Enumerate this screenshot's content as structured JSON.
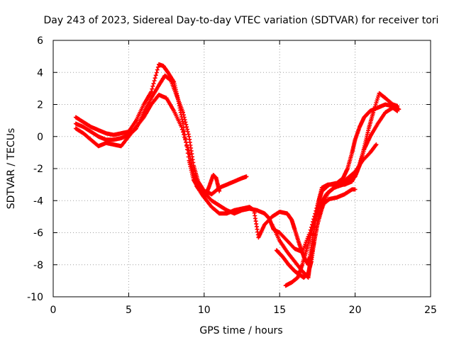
{
  "chart_data": {
    "type": "scatter",
    "title": "Day 243 of 2023, Sidereal Day-to-day VTEC variation (SDTVAR) for receiver tori",
    "xlabel": "GPS time / hours",
    "ylabel": "SDTVAR / TECUs",
    "xlim": [
      0,
      25
    ],
    "ylim": [
      -10,
      6
    ],
    "xticks": [
      "0",
      "5",
      "10",
      "15",
      "20",
      "25"
    ],
    "yticks": [
      "-10",
      "-8",
      "-6",
      "-4",
      "-2",
      "0",
      "2",
      "4",
      "6"
    ],
    "grid": true,
    "marker": "+",
    "color": "#ff0000",
    "series": [
      {
        "points": [
          [
            1.5,
            1.2
          ],
          [
            2.0,
            0.9
          ],
          [
            2.5,
            0.6
          ],
          [
            3.0,
            0.4
          ],
          [
            3.5,
            0.2
          ],
          [
            4.0,
            0.1
          ],
          [
            4.5,
            0.2
          ],
          [
            5.0,
            0.3
          ],
          [
            5.5,
            1.0
          ],
          [
            6.0,
            2.0
          ],
          [
            6.5,
            2.8
          ],
          [
            7.0,
            4.5
          ],
          [
            7.3,
            4.4
          ],
          [
            7.6,
            4.0
          ],
          [
            8.0,
            3.4
          ],
          [
            8.3,
            2.2
          ],
          [
            8.6,
            0.8
          ],
          [
            9.0,
            -1.5
          ],
          [
            9.3,
            -2.7
          ],
          [
            9.6,
            -3.2
          ],
          [
            10.0,
            -3.8
          ],
          [
            10.3,
            -3.2
          ],
          [
            10.6,
            -2.4
          ],
          [
            10.8,
            -2.6
          ],
          [
            11.0,
            -3.4
          ]
        ]
      },
      {
        "points": [
          [
            1.5,
            0.8
          ],
          [
            2.0,
            0.6
          ],
          [
            2.5,
            0.3
          ],
          [
            3.0,
            0.0
          ],
          [
            3.5,
            -0.2
          ],
          [
            4.0,
            -0.2
          ],
          [
            4.5,
            -0.1
          ],
          [
            5.0,
            0.1
          ],
          [
            5.5,
            0.5
          ],
          [
            6.0,
            1.5
          ],
          [
            6.5,
            2.4
          ],
          [
            7.0,
            3.2
          ],
          [
            7.4,
            3.8
          ],
          [
            7.8,
            3.5
          ],
          [
            8.2,
            2.5
          ],
          [
            8.6,
            1.5
          ],
          [
            9.0,
            0.0
          ],
          [
            9.3,
            -1.8
          ],
          [
            9.6,
            -2.8
          ],
          [
            10.0,
            -3.4
          ],
          [
            10.5,
            -3.6
          ],
          [
            11.0,
            -3.2
          ],
          [
            11.5,
            -3.0
          ],
          [
            12.0,
            -2.8
          ],
          [
            12.5,
            -2.6
          ],
          [
            12.8,
            -2.5
          ]
        ]
      },
      {
        "points": [
          [
            1.5,
            0.5
          ],
          [
            2.0,
            0.2
          ],
          [
            2.5,
            -0.2
          ],
          [
            3.0,
            -0.6
          ],
          [
            3.5,
            -0.4
          ],
          [
            4.0,
            -0.5
          ],
          [
            4.5,
            -0.6
          ],
          [
            5.0,
            0.0
          ],
          [
            5.5,
            0.6
          ],
          [
            6.0,
            1.2
          ],
          [
            6.5,
            2.0
          ],
          [
            7.0,
            2.6
          ],
          [
            7.5,
            2.4
          ],
          [
            8.0,
            1.6
          ],
          [
            8.5,
            0.6
          ],
          [
            9.0,
            -1.0
          ],
          [
            9.3,
            -2.3
          ],
          [
            9.6,
            -3.0
          ],
          [
            10.0,
            -3.5
          ],
          [
            10.5,
            -4.0
          ],
          [
            11.0,
            -4.3
          ],
          [
            11.5,
            -4.6
          ],
          [
            12.0,
            -4.8
          ],
          [
            12.5,
            -4.6
          ],
          [
            13.0,
            -4.5
          ],
          [
            13.5,
            -4.6
          ],
          [
            14.0,
            -4.8
          ],
          [
            14.3,
            -5.1
          ],
          [
            14.6,
            -5.8
          ],
          [
            15.0,
            -6.0
          ],
          [
            15.5,
            -6.5
          ],
          [
            16.0,
            -7.0
          ],
          [
            16.5,
            -7.2
          ],
          [
            17.0,
            -6.0
          ],
          [
            17.5,
            -4.3
          ],
          [
            17.8,
            -3.2
          ],
          [
            18.2,
            -3.0
          ],
          [
            18.7,
            -3.0
          ],
          [
            19.3,
            -3.0
          ],
          [
            19.8,
            -2.8
          ],
          [
            20.2,
            -2.0
          ],
          [
            20.6,
            -0.8
          ],
          [
            21.0,
            0.0
          ],
          [
            21.5,
            0.8
          ],
          [
            22.0,
            1.5
          ],
          [
            22.5,
            1.8
          ],
          [
            22.8,
            1.6
          ]
        ]
      },
      {
        "points": [
          [
            9.5,
            -3.1
          ],
          [
            10.0,
            -3.8
          ],
          [
            10.5,
            -4.4
          ],
          [
            11.0,
            -4.8
          ],
          [
            11.5,
            -4.8
          ],
          [
            12.0,
            -4.6
          ],
          [
            12.5,
            -4.5
          ],
          [
            13.0,
            -4.4
          ],
          [
            13.3,
            -4.6
          ],
          [
            13.6,
            -6.3
          ],
          [
            14.0,
            -5.5
          ],
          [
            14.5,
            -5.0
          ],
          [
            15.0,
            -4.7
          ],
          [
            15.5,
            -4.8
          ],
          [
            15.8,
            -5.2
          ],
          [
            16.0,
            -5.8
          ],
          [
            16.3,
            -6.7
          ],
          [
            16.6,
            -7.5
          ],
          [
            16.9,
            -8.0
          ],
          [
            17.0,
            -7.5
          ],
          [
            17.2,
            -6.3
          ],
          [
            17.4,
            -5.0
          ],
          [
            17.6,
            -4.0
          ],
          [
            17.8,
            -3.4
          ],
          [
            18.3,
            -3.0
          ],
          [
            18.8,
            -2.9
          ],
          [
            19.2,
            -2.6
          ],
          [
            19.5,
            -2.0
          ],
          [
            19.8,
            -1.0
          ],
          [
            20.0,
            -0.2
          ],
          [
            20.3,
            0.6
          ],
          [
            20.6,
            1.2
          ],
          [
            21.0,
            1.6
          ],
          [
            21.5,
            1.8
          ],
          [
            22.0,
            2.0
          ],
          [
            22.5,
            1.9
          ],
          [
            22.9,
            1.7
          ]
        ]
      },
      {
        "points": [
          [
            14.5,
            -5.5
          ],
          [
            15.0,
            -6.5
          ],
          [
            15.5,
            -7.2
          ],
          [
            16.0,
            -7.8
          ],
          [
            16.5,
            -8.4
          ],
          [
            16.9,
            -8.8
          ],
          [
            17.0,
            -8.0
          ],
          [
            17.2,
            -7.0
          ],
          [
            17.4,
            -6.0
          ],
          [
            17.6,
            -5.0
          ],
          [
            17.9,
            -4.2
          ],
          [
            18.3,
            -3.9
          ],
          [
            18.8,
            -3.8
          ],
          [
            19.3,
            -3.6
          ],
          [
            19.8,
            -3.3
          ],
          [
            20.0,
            -3.3
          ]
        ]
      },
      {
        "points": [
          [
            14.8,
            -7.1
          ],
          [
            15.2,
            -7.5
          ],
          [
            15.6,
            -8.0
          ],
          [
            16.0,
            -8.4
          ],
          [
            16.3,
            -8.6
          ],
          [
            16.6,
            -8.8
          ],
          [
            16.9,
            -8.5
          ],
          [
            17.1,
            -7.8
          ],
          [
            17.3,
            -6.5
          ],
          [
            17.5,
            -5.5
          ],
          [
            17.8,
            -4.5
          ],
          [
            18.2,
            -3.5
          ],
          [
            18.6,
            -3.2
          ],
          [
            19.0,
            -3.0
          ],
          [
            19.5,
            -2.6
          ],
          [
            20.0,
            -2.2
          ],
          [
            20.5,
            -1.5
          ],
          [
            21.0,
            -1.0
          ],
          [
            21.4,
            -0.5
          ]
        ]
      },
      {
        "points": [
          [
            15.4,
            -9.3
          ],
          [
            15.8,
            -9.1
          ],
          [
            16.2,
            -8.8
          ],
          [
            16.5,
            -8.0
          ],
          [
            16.8,
            -7.0
          ],
          [
            17.1,
            -6.0
          ],
          [
            17.4,
            -5.0
          ],
          [
            17.7,
            -4.2
          ],
          [
            18.1,
            -3.6
          ],
          [
            18.6,
            -3.2
          ],
          [
            19.2,
            -3.0
          ],
          [
            19.7,
            -2.7
          ],
          [
            20.0,
            -2.5
          ],
          [
            20.3,
            -1.8
          ],
          [
            20.6,
            -0.7
          ],
          [
            20.9,
            0.5
          ],
          [
            21.2,
            1.5
          ],
          [
            21.6,
            2.7
          ],
          [
            22.0,
            2.4
          ],
          [
            22.5,
            2.0
          ],
          [
            22.8,
            1.9
          ]
        ]
      }
    ]
  }
}
